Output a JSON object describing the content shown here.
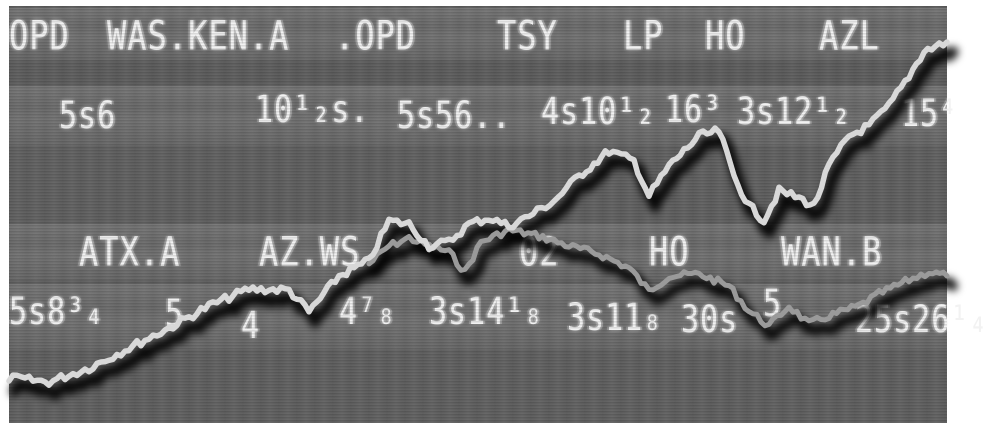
{
  "tickers": {
    "row1": [
      "OPD",
      "WAS.KEN.A",
      ".OPD",
      "TSY",
      "LP",
      "HO",
      "AZL"
    ],
    "row2": [
      "5s6",
      "10¹₂s.",
      "5s56..",
      "4s10¹₂",
      "16³",
      "3s12¹₂",
      "15⁴"
    ],
    "row3": [
      "ATX.A",
      "AZ.WS",
      "02",
      "HO",
      "WAN.B"
    ],
    "row4": [
      "5s8³₄",
      "5",
      "4",
      "4⁷₈",
      "3s14¹₈",
      "3s11₈",
      "30s",
      "5",
      "25s26¹₄"
    ]
  },
  "colors": {
    "background": "#5e5e5e",
    "ticker_text": "#f2f2f2",
    "line_light": "#d8d8d8",
    "line_mid": "#9a9a9a",
    "line_shadow": "#000000"
  }
}
